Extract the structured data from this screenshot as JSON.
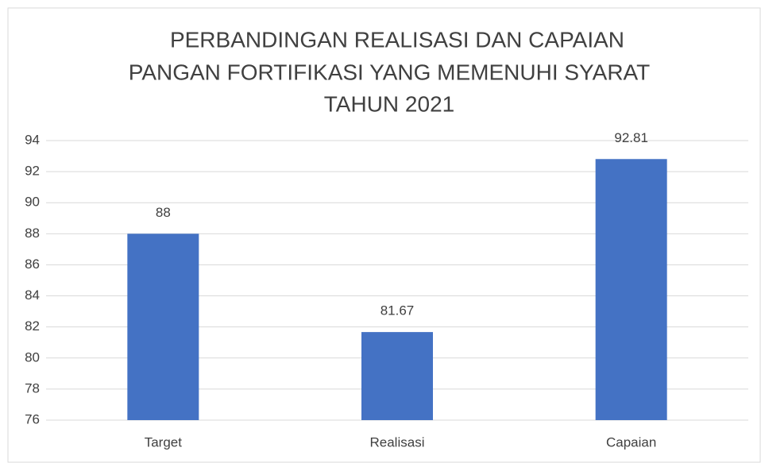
{
  "chart_data": {
    "type": "bar",
    "title": [
      "PERBANDINGAN REALISASI DAN CAPAIAN",
      "PANGAN FORTIFIKASI YANG MEMENUHI SYARAT",
      "TAHUN 2021"
    ],
    "categories": [
      "Target",
      "Realisasi",
      "Capaian"
    ],
    "values": [
      88,
      81.67,
      92.81
    ],
    "color": "#4472c4",
    "ylim": [
      76,
      94
    ],
    "yticks": [
      76,
      78,
      80,
      82,
      84,
      86,
      88,
      90,
      92,
      94
    ],
    "grid": true
  }
}
